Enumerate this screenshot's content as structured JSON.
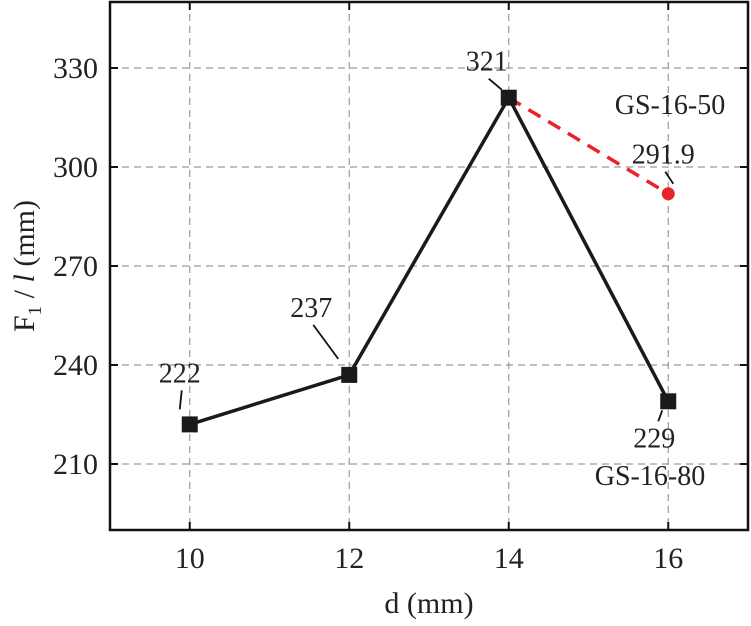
{
  "chart_data": {
    "type": "line",
    "title": "",
    "xlabel": "d (mm)",
    "ylabel_parts": [
      "F",
      "1",
      " / ",
      "l",
      " (mm)"
    ],
    "xlim": [
      9,
      17
    ],
    "ylim": [
      190,
      350
    ],
    "xticks": [
      10,
      12,
      14,
      16
    ],
    "yticks": [
      210,
      240,
      270,
      300,
      330
    ],
    "grid": true,
    "series": [
      {
        "name": "GS-16-80",
        "color": "#1a1a1a",
        "line_style": "solid",
        "marker": "square",
        "x": [
          10,
          12,
          14,
          16
        ],
        "y": [
          222,
          237,
          321,
          229
        ],
        "labels": [
          "222",
          "237",
          "321",
          "229"
        ]
      },
      {
        "name": "GS-16-50",
        "color": "#e8242b",
        "line_style": "dashed",
        "marker": "circle",
        "x": [
          14,
          16
        ],
        "y": [
          321,
          291.9
        ],
        "labels": [
          "",
          "291.9"
        ]
      }
    ]
  }
}
